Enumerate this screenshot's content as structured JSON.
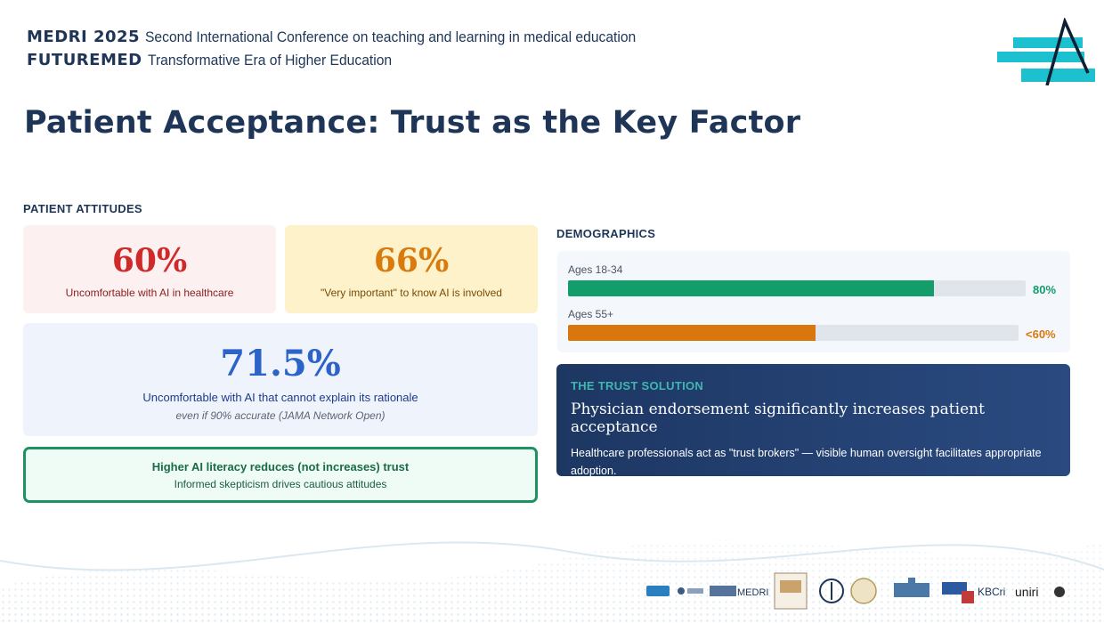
{
  "header": {
    "line1_brand": "MEDRI 2025",
    "line1_text": "Second International Conference on teaching and learning in medical education",
    "line2_brand": "FUTUREMED",
    "line2_text": "Transformative Era of Higher Education"
  },
  "title": "Patient Acceptance: Trust as the Key Factor",
  "attitudes": {
    "label": "PATIENT ATTITUDES",
    "card1": {
      "value": "60%",
      "text": "Uncomfortable with AI in healthcare"
    },
    "card2": {
      "value": "66%",
      "text": "\"Very important\" to know AI is involved"
    },
    "card3": {
      "value": "71.5%",
      "text": "Uncomfortable with AI that cannot explain its rationale",
      "note": "even if 90% accurate (JAMA Network Open)"
    },
    "card4": {
      "heading": "Higher AI literacy reduces (not increases) trust",
      "text": "Informed skepticism drives cautious attitudes"
    }
  },
  "demographics": {
    "label": "DEMOGRAPHICS",
    "bars": [
      {
        "label": "Ages 18-34",
        "value_text": "80%",
        "fraction": 0.8,
        "color": "#129d6a"
      },
      {
        "label": "Ages 55+",
        "value_text": "<60%",
        "fraction": 0.55,
        "color": "#d9770c"
      }
    ]
  },
  "trust": {
    "label": "THE TRUST SOLUTION",
    "heading": "Physician endorsement significantly increases patient acceptance",
    "body": "Healthcare professionals act as \"trust brokers\" — visible human oversight facilitates appropriate adoption."
  },
  "partners": {
    "logo_text_medri": "MEDRI",
    "logo_text_kbc": "KBCri",
    "logo_text_uniri": "uniri"
  },
  "colors": {
    "navy": "#1e3557",
    "teal": "#1cc0cf"
  }
}
